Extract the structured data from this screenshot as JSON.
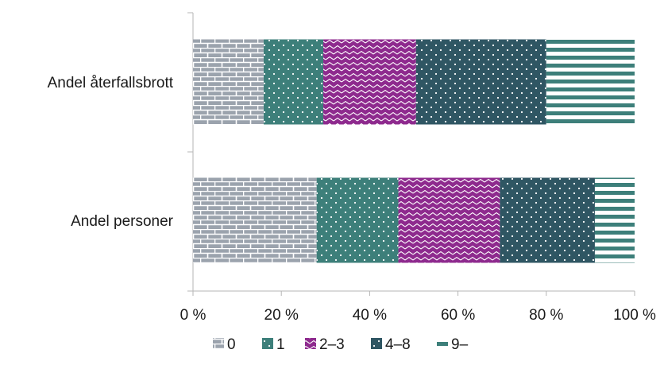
{
  "chart_data": {
    "type": "bar",
    "orientation": "horizontal",
    "stacked": "percent",
    "categories": [
      "Andel återfallsbrott",
      "Andel personer"
    ],
    "series": [
      {
        "name": "0",
        "values": [
          16,
          28
        ],
        "color": "#9ba3ad",
        "pattern": "brick"
      },
      {
        "name": "1",
        "values": [
          13.5,
          18.5
        ],
        "color": "#3d7f7a",
        "pattern": "dots"
      },
      {
        "name": "2–3",
        "values": [
          21,
          23
        ],
        "color": "#8e2a8e",
        "pattern": "zigzag"
      },
      {
        "name": "4–8",
        "values": [
          29.5,
          21.5
        ],
        "color": "#2f5663",
        "pattern": "dots"
      },
      {
        "name": "9–",
        "values": [
          20,
          9
        ],
        "color": "#3d7f7a",
        "pattern": "stripes"
      }
    ],
    "xlim": [
      0,
      100
    ],
    "xticks": [
      0,
      20,
      40,
      60,
      80,
      100
    ],
    "xtick_labels": [
      "0 %",
      "20 %",
      "40 %",
      "60 %",
      "80 %",
      "100 %"
    ],
    "title": "",
    "xlabel": "",
    "ylabel": "",
    "grid": false,
    "legend": "bottom"
  }
}
